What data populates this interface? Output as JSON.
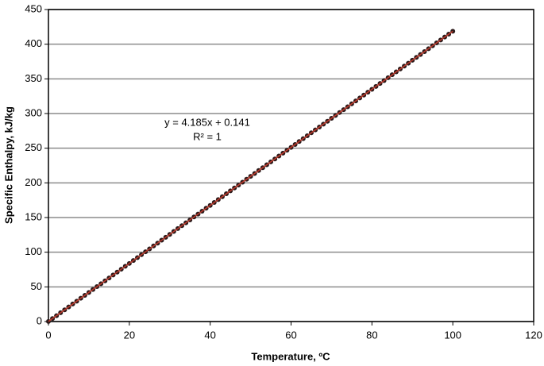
{
  "chart_data": {
    "type": "scatter",
    "xlabel": "Temperature, ºC",
    "ylabel": "Specific Enthalpy,  kJ/kg",
    "annotations": [
      "y = 4.185x + 0.141",
      "R² = 1"
    ],
    "trendline": {
      "slope": 4.185,
      "intercept": 0.141,
      "color": "#c0392b"
    },
    "grid": true,
    "xlim": [
      0,
      120
    ],
    "xticks": [
      0,
      20,
      40,
      60,
      80,
      100,
      120
    ],
    "ylim": [
      0,
      450
    ],
    "yticks": [
      0,
      50,
      100,
      150,
      200,
      250,
      300,
      350,
      400,
      450
    ],
    "series": [
      {
        "name": "Specific Enthalpy",
        "color": "#2b1a1a",
        "x": [
          0,
          1,
          2,
          3,
          4,
          5,
          6,
          7,
          8,
          9,
          10,
          11,
          12,
          13,
          14,
          15,
          16,
          17,
          18,
          19,
          20,
          21,
          22,
          23,
          24,
          25,
          26,
          27,
          28,
          29,
          30,
          31,
          32,
          33,
          34,
          35,
          36,
          37,
          38,
          39,
          40,
          41,
          42,
          43,
          44,
          45,
          46,
          47,
          48,
          49,
          50,
          51,
          52,
          53,
          54,
          55,
          56,
          57,
          58,
          59,
          60,
          61,
          62,
          63,
          64,
          65,
          66,
          67,
          68,
          69,
          70,
          71,
          72,
          73,
          74,
          75,
          76,
          77,
          78,
          79,
          80,
          81,
          82,
          83,
          84,
          85,
          86,
          87,
          88,
          89,
          90,
          91,
          92,
          93,
          94,
          95,
          96,
          97,
          98,
          99,
          100
        ],
        "values": [
          0.1,
          4.3,
          8.5,
          12.7,
          16.9,
          21.1,
          25.3,
          29.4,
          33.6,
          37.8,
          42.0,
          46.2,
          50.4,
          54.5,
          58.7,
          62.9,
          67.1,
          71.3,
          75.5,
          79.7,
          83.8,
          88.0,
          92.2,
          96.4,
          100.6,
          104.8,
          109.0,
          113.1,
          117.3,
          121.5,
          125.7,
          129.9,
          134.1,
          138.2,
          142.4,
          146.6,
          150.8,
          155.0,
          159.2,
          163.4,
          167.5,
          171.7,
          175.9,
          180.1,
          184.3,
          188.5,
          192.7,
          196.8,
          201.0,
          205.2,
          209.4,
          213.6,
          217.8,
          221.9,
          226.1,
          230.3,
          234.5,
          238.7,
          242.9,
          247.1,
          251.2,
          255.4,
          259.6,
          263.8,
          268.0,
          272.2,
          276.4,
          280.5,
          284.7,
          288.9,
          293.1,
          297.3,
          301.5,
          305.6,
          309.8,
          314.0,
          318.2,
          322.4,
          326.6,
          330.8,
          334.9,
          339.1,
          343.3,
          347.5,
          351.7,
          355.9,
          360.1,
          364.2,
          368.4,
          372.6,
          376.8,
          381.0,
          385.2,
          389.3,
          393.5,
          397.7,
          401.9,
          406.1,
          410.3,
          414.5,
          418.6
        ]
      }
    ]
  }
}
